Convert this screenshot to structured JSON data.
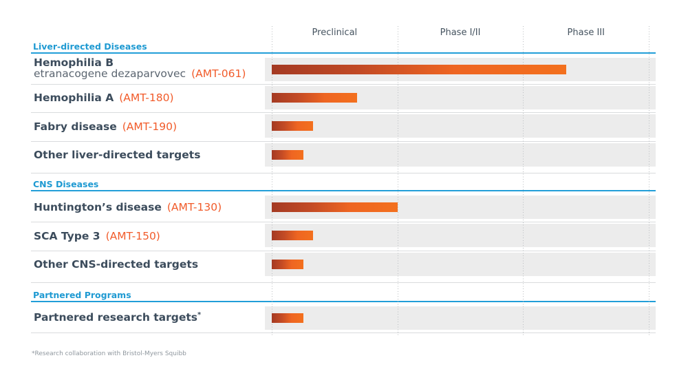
{
  "chart_data": {
    "type": "bar",
    "title": "",
    "columns": [
      "Preclinical",
      "Phase I/II",
      "Phase III"
    ],
    "unit": "phase progress (1 = end of Preclinical, 2 = end of Phase I/II, 3 = end of Phase III)",
    "sections": [
      {
        "title": "Liver-directed Diseases",
        "rows": [
          {
            "label": "Hemophilia B",
            "sublabel": "etranacogene dezaparvovec",
            "code": "(AMT-061)",
            "progress": 2.34
          },
          {
            "label": "Hemophilia A",
            "code": "(AMT-180)",
            "progress": 0.68
          },
          {
            "label": "Fabry disease",
            "code": "(AMT-190)",
            "progress": 0.33
          },
          {
            "label": "Other liver-directed targets",
            "code": "",
            "progress": 0.25
          }
        ]
      },
      {
        "title": "CNS Diseases",
        "rows": [
          {
            "label": "Huntington’s disease",
            "code": "(AMT-130)",
            "progress": 1.0
          },
          {
            "label": "SCA Type 3",
            "code": "(AMT-150)",
            "progress": 0.33
          },
          {
            "label": "Other CNS-directed targets",
            "code": "",
            "progress": 0.25
          }
        ]
      },
      {
        "title": "Partnered Programs",
        "rows": [
          {
            "label": "Partnered research targets",
            "superscript": "*",
            "code": "",
            "progress": 0.25
          }
        ]
      }
    ],
    "footnote": "*Research collaboration with Bristol-Myers Squibb",
    "legend_position": "none",
    "grid": "dotted vertical phase separators",
    "colors": {
      "bar_gradient_start": "#a43a23",
      "bar_gradient_end": "#f3701e",
      "section_blue": "#219ed8",
      "label_dark": "#3c4c5c",
      "sublabel_gray": "#5b6570",
      "code_orange": "#f15b2a",
      "band_gray": "#ececec"
    }
  }
}
